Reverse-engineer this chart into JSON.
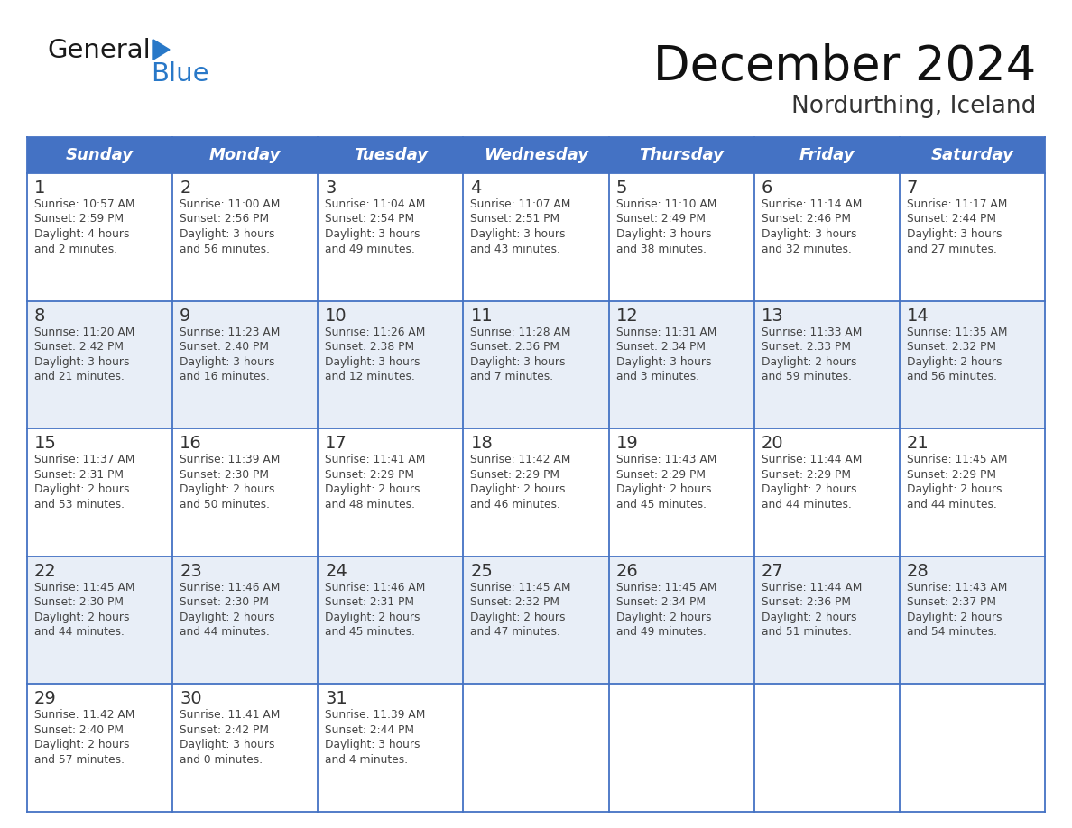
{
  "title": "December 2024",
  "subtitle": "Nordurthing, Iceland",
  "days_of_week": [
    "Sunday",
    "Monday",
    "Tuesday",
    "Wednesday",
    "Thursday",
    "Friday",
    "Saturday"
  ],
  "header_bg": "#4472C4",
  "header_text": "#FFFFFF",
  "row_bg_odd": "#FFFFFF",
  "row_bg_even": "#E8EEF7",
  "cell_border": "#4472C4",
  "day_num_color": "#333333",
  "cell_text_color": "#444444",
  "grid_line_color": "#4472C4",
  "logo_color1": "#1a1a1a",
  "logo_color2": "#2878C8",
  "triangle_color": "#2878C8",
  "calendar": [
    [
      {
        "day": 1,
        "sunrise": "10:57 AM",
        "sunset": "2:59 PM",
        "daylight": "4 hours\nand 2 minutes."
      },
      {
        "day": 2,
        "sunrise": "11:00 AM",
        "sunset": "2:56 PM",
        "daylight": "3 hours\nand 56 minutes."
      },
      {
        "day": 3,
        "sunrise": "11:04 AM",
        "sunset": "2:54 PM",
        "daylight": "3 hours\nand 49 minutes."
      },
      {
        "day": 4,
        "sunrise": "11:07 AM",
        "sunset": "2:51 PM",
        "daylight": "3 hours\nand 43 minutes."
      },
      {
        "day": 5,
        "sunrise": "11:10 AM",
        "sunset": "2:49 PM",
        "daylight": "3 hours\nand 38 minutes."
      },
      {
        "day": 6,
        "sunrise": "11:14 AM",
        "sunset": "2:46 PM",
        "daylight": "3 hours\nand 32 minutes."
      },
      {
        "day": 7,
        "sunrise": "11:17 AM",
        "sunset": "2:44 PM",
        "daylight": "3 hours\nand 27 minutes."
      }
    ],
    [
      {
        "day": 8,
        "sunrise": "11:20 AM",
        "sunset": "2:42 PM",
        "daylight": "3 hours\nand 21 minutes."
      },
      {
        "day": 9,
        "sunrise": "11:23 AM",
        "sunset": "2:40 PM",
        "daylight": "3 hours\nand 16 minutes."
      },
      {
        "day": 10,
        "sunrise": "11:26 AM",
        "sunset": "2:38 PM",
        "daylight": "3 hours\nand 12 minutes."
      },
      {
        "day": 11,
        "sunrise": "11:28 AM",
        "sunset": "2:36 PM",
        "daylight": "3 hours\nand 7 minutes."
      },
      {
        "day": 12,
        "sunrise": "11:31 AM",
        "sunset": "2:34 PM",
        "daylight": "3 hours\nand 3 minutes."
      },
      {
        "day": 13,
        "sunrise": "11:33 AM",
        "sunset": "2:33 PM",
        "daylight": "2 hours\nand 59 minutes."
      },
      {
        "day": 14,
        "sunrise": "11:35 AM",
        "sunset": "2:32 PM",
        "daylight": "2 hours\nand 56 minutes."
      }
    ],
    [
      {
        "day": 15,
        "sunrise": "11:37 AM",
        "sunset": "2:31 PM",
        "daylight": "2 hours\nand 53 minutes."
      },
      {
        "day": 16,
        "sunrise": "11:39 AM",
        "sunset": "2:30 PM",
        "daylight": "2 hours\nand 50 minutes."
      },
      {
        "day": 17,
        "sunrise": "11:41 AM",
        "sunset": "2:29 PM",
        "daylight": "2 hours\nand 48 minutes."
      },
      {
        "day": 18,
        "sunrise": "11:42 AM",
        "sunset": "2:29 PM",
        "daylight": "2 hours\nand 46 minutes."
      },
      {
        "day": 19,
        "sunrise": "11:43 AM",
        "sunset": "2:29 PM",
        "daylight": "2 hours\nand 45 minutes."
      },
      {
        "day": 20,
        "sunrise": "11:44 AM",
        "sunset": "2:29 PM",
        "daylight": "2 hours\nand 44 minutes."
      },
      {
        "day": 21,
        "sunrise": "11:45 AM",
        "sunset": "2:29 PM",
        "daylight": "2 hours\nand 44 minutes."
      }
    ],
    [
      {
        "day": 22,
        "sunrise": "11:45 AM",
        "sunset": "2:30 PM",
        "daylight": "2 hours\nand 44 minutes."
      },
      {
        "day": 23,
        "sunrise": "11:46 AM",
        "sunset": "2:30 PM",
        "daylight": "2 hours\nand 44 minutes."
      },
      {
        "day": 24,
        "sunrise": "11:46 AM",
        "sunset": "2:31 PM",
        "daylight": "2 hours\nand 45 minutes."
      },
      {
        "day": 25,
        "sunrise": "11:45 AM",
        "sunset": "2:32 PM",
        "daylight": "2 hours\nand 47 minutes."
      },
      {
        "day": 26,
        "sunrise": "11:45 AM",
        "sunset": "2:34 PM",
        "daylight": "2 hours\nand 49 minutes."
      },
      {
        "day": 27,
        "sunrise": "11:44 AM",
        "sunset": "2:36 PM",
        "daylight": "2 hours\nand 51 minutes."
      },
      {
        "day": 28,
        "sunrise": "11:43 AM",
        "sunset": "2:37 PM",
        "daylight": "2 hours\nand 54 minutes."
      }
    ],
    [
      {
        "day": 29,
        "sunrise": "11:42 AM",
        "sunset": "2:40 PM",
        "daylight": "2 hours\nand 57 minutes."
      },
      {
        "day": 30,
        "sunrise": "11:41 AM",
        "sunset": "2:42 PM",
        "daylight": "3 hours\nand 0 minutes."
      },
      {
        "day": 31,
        "sunrise": "11:39 AM",
        "sunset": "2:44 PM",
        "daylight": "3 hours\nand 4 minutes."
      },
      null,
      null,
      null,
      null
    ]
  ],
  "logo_text1": "General",
  "logo_text2": "Blue",
  "figsize": [
    11.88,
    9.18
  ],
  "dpi": 100
}
